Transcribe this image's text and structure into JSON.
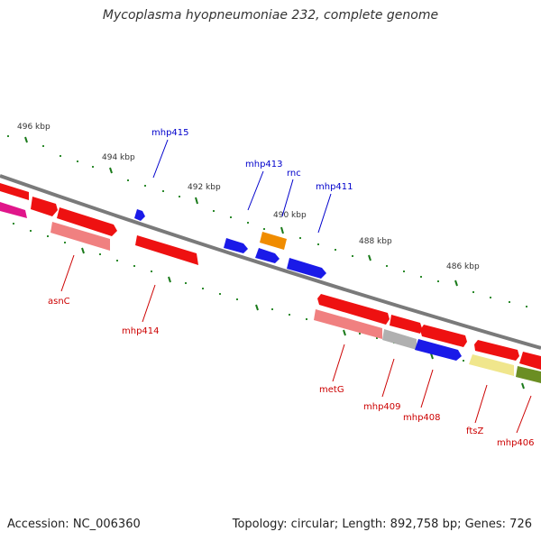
{
  "title": "Mycoplasma hyopneumoniae 232, complete genome",
  "footer": {
    "accession": "Accession: NC_006360",
    "summary": "Topology: circular; Length: 892,758 bp; Genes: 726"
  },
  "ticks": [
    "496 kbp",
    "494 kbp",
    "492 kbp",
    "490 kbp",
    "488 kbp",
    "486 kbp"
  ],
  "genes_top": [
    "mhp415",
    "mhp413",
    "rnc",
    "mhp411"
  ],
  "genes_bottom": [
    "asnC",
    "mhp414",
    "metG",
    "mhp409",
    "mhp408",
    "ftsZ",
    "mhp406"
  ],
  "colors": {
    "forward": "#ee1111",
    "reverse_light": "#f08080",
    "blue": "#1a1ae8",
    "orange": "#f08c00",
    "magenta": "#e0168a",
    "gray": "#b0b0b0",
    "khaki": "#f0e68c",
    "olive": "#6b8e23",
    "tick": "#1a7a1a",
    "backbone": "#7a7a7a"
  }
}
